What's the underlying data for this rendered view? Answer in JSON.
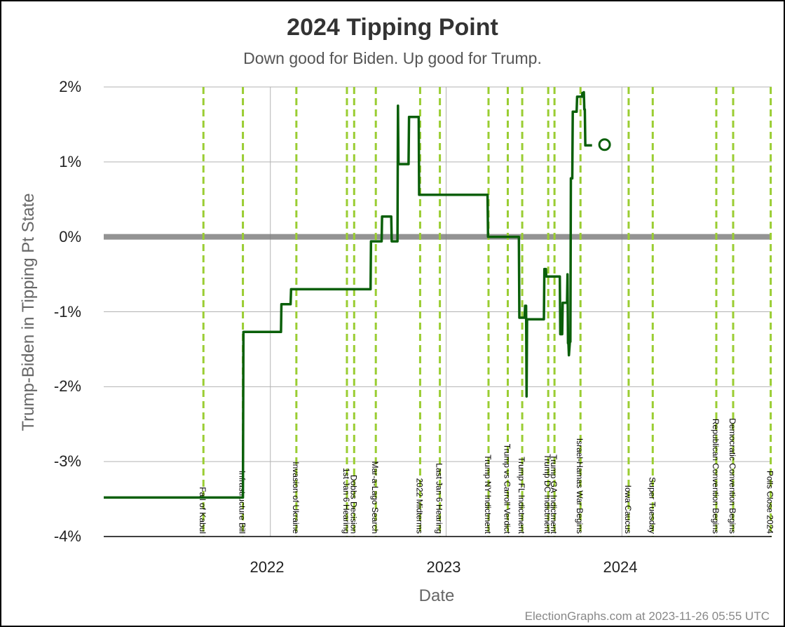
{
  "chart_data": {
    "type": "line",
    "title": "2024 Tipping Point",
    "subtitle": "Down good for Biden. Up good for Trump.",
    "xlabel": "Date",
    "ylabel": "Trump-Biden in Tipping Pt State",
    "ylim": [
      -4,
      2
    ],
    "xlim": [
      "2021-01-20",
      "2024-11-07"
    ],
    "y_ticks": [
      "2%",
      "1%",
      "0%",
      "-1%",
      "-2%",
      "-3%",
      "-4%"
    ],
    "x_ticks": [
      "2022",
      "2023",
      "2024"
    ],
    "grid": true,
    "credit": "ElectionGraphs.com at 2023-11-26 05:55 UTC",
    "series": [
      {
        "color": "#0a5f0a",
        "points": [
          [
            "2021-01-20",
            -3.48
          ],
          [
            "2021-11-05",
            -3.48
          ],
          [
            "2021-11-06",
            -1.27
          ],
          [
            "2022-01-23",
            -1.27
          ],
          [
            "2022-01-24",
            -0.9
          ],
          [
            "2022-02-12",
            -0.9
          ],
          [
            "2022-02-13",
            -0.7
          ],
          [
            "2022-07-28",
            -0.7
          ],
          [
            "2022-07-29",
            -0.06
          ],
          [
            "2022-08-20",
            -0.06
          ],
          [
            "2022-08-21",
            0.27
          ],
          [
            "2022-09-09",
            0.27
          ],
          [
            "2022-09-10",
            -0.06
          ],
          [
            "2022-09-22",
            -0.06
          ],
          [
            "2022-09-23",
            1.75
          ],
          [
            "2022-09-24",
            0.97
          ],
          [
            "2022-10-15",
            0.97
          ],
          [
            "2022-10-16",
            1.6
          ],
          [
            "2022-11-05",
            1.6
          ],
          [
            "2022-11-06",
            0.56
          ],
          [
            "2023-03-28",
            0.56
          ],
          [
            "2023-03-29",
            0.0
          ],
          [
            "2023-06-01",
            0.0
          ],
          [
            "2023-06-02",
            -1.08
          ],
          [
            "2023-06-13",
            -1.08
          ],
          [
            "2023-06-14",
            -0.92
          ],
          [
            "2023-06-16",
            -0.92
          ],
          [
            "2023-06-17",
            -2.13
          ],
          [
            "2023-06-18",
            -1.1
          ],
          [
            "2023-07-23",
            -1.1
          ],
          [
            "2023-07-24",
            -0.43
          ],
          [
            "2023-07-27",
            -0.43
          ],
          [
            "2023-07-28",
            -0.53
          ],
          [
            "2023-08-25",
            -0.53
          ],
          [
            "2023-08-26",
            -1.3
          ],
          [
            "2023-08-30",
            -1.3
          ],
          [
            "2023-08-31",
            -0.88
          ],
          [
            "2023-09-09",
            -0.88
          ],
          [
            "2023-09-10",
            -0.5
          ],
          [
            "2023-09-11",
            -1.42
          ],
          [
            "2023-09-12",
            -1.42
          ],
          [
            "2023-09-13",
            -1.58
          ],
          [
            "2023-09-15",
            -1.4
          ],
          [
            "2023-09-16",
            -1.4
          ],
          [
            "2023-09-17",
            0.78
          ],
          [
            "2023-09-20",
            0.78
          ],
          [
            "2023-09-21",
            1.67
          ],
          [
            "2023-09-29",
            1.67
          ],
          [
            "2023-09-30",
            1.87
          ],
          [
            "2023-10-10",
            1.87
          ],
          [
            "2023-10-11",
            1.92
          ],
          [
            "2023-10-12",
            1.87
          ],
          [
            "2023-10-13",
            1.87
          ],
          [
            "2023-10-14",
            1.93
          ],
          [
            "2023-10-15",
            1.7
          ],
          [
            "2023-10-16",
            1.7
          ],
          [
            "2023-10-17",
            1.22
          ],
          [
            "2023-10-31",
            1.22
          ]
        ],
        "current": [
          "2023-11-26",
          1.23
        ]
      }
    ],
    "events": [
      {
        "date": "2021-08-15",
        "label": "Fall of Kabul"
      },
      {
        "date": "2021-11-05",
        "label": "Infrastructure Bill"
      },
      {
        "date": "2022-02-24",
        "label": "Invasion of Ukraine"
      },
      {
        "date": "2022-06-09",
        "label": "1st Jan 6 Hearing"
      },
      {
        "date": "2022-06-24",
        "label": "Dobbs Decision"
      },
      {
        "date": "2022-08-08",
        "label": "Mar-a-Lago Search"
      },
      {
        "date": "2022-11-08",
        "label": "2022 Midterms"
      },
      {
        "date": "2022-12-19",
        "label": "Last Jan 6 Hearing"
      },
      {
        "date": "2023-03-30",
        "label": "Trump NY Indictment"
      },
      {
        "date": "2023-05-09",
        "label": "Trump vs Carroll Verdict"
      },
      {
        "date": "2023-06-08",
        "label": "Trump FL Indictment"
      },
      {
        "date": "2023-08-01",
        "label": "Trump DC Indictment"
      },
      {
        "date": "2023-08-14",
        "label": "Trump GA Indictment"
      },
      {
        "date": "2023-10-07",
        "label": "Israel-Hamas War Begins"
      },
      {
        "date": "2024-01-15",
        "label": "Iowa Caucus"
      },
      {
        "date": "2024-03-05",
        "label": "Super Tuesday"
      },
      {
        "date": "2024-07-15",
        "label": "Republican Convention Begins"
      },
      {
        "date": "2024-08-19",
        "label": "Democratic Convention Begins"
      },
      {
        "date": "2024-11-05",
        "label": "Polls Close 2024"
      }
    ],
    "colors": {
      "line": "#0a5f0a",
      "event_line": "#9acd32",
      "zero_band": "#808080",
      "grid": "#b3b3b3"
    }
  }
}
